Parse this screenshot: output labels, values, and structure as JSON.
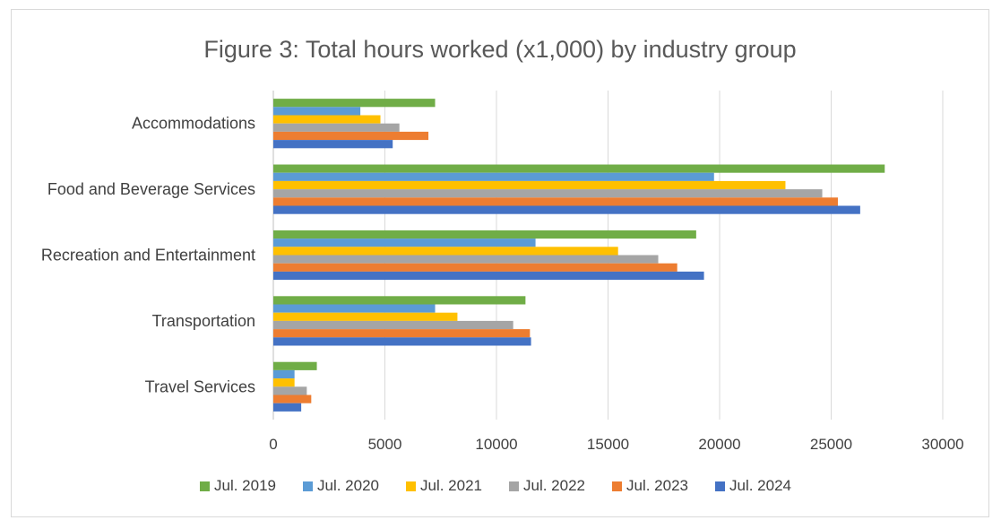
{
  "chart_data": {
    "type": "bar",
    "orientation": "horizontal",
    "title": "Figure 3: Total hours worked (x1,000) by industry group",
    "xlabel": "",
    "ylabel": "",
    "categories": [
      "Accommodations",
      "Food and Beverage Services",
      "Recreation and Entertainment",
      "Transportation",
      "Travel Services"
    ],
    "xlim": [
      0,
      30000
    ],
    "xticks": [
      "0",
      "5000",
      "10000",
      "15000",
      "20000",
      "25000",
      "30000"
    ],
    "grid": true,
    "legend_position": "bottom",
    "series": [
      {
        "name": "Jul. 2019",
        "color": "#70ad47",
        "values": [
          7250,
          27400,
          18950,
          11300,
          1950
        ]
      },
      {
        "name": "Jul. 2020",
        "color": "#5b9bd5",
        "values": [
          3900,
          19750,
          11750,
          7250,
          950
        ]
      },
      {
        "name": "Jul. 2021",
        "color": "#ffc000",
        "values": [
          4800,
          22950,
          15450,
          8250,
          950
        ]
      },
      {
        "name": "Jul. 2022",
        "color": "#a5a5a5",
        "values": [
          5650,
          24600,
          17250,
          10750,
          1500
        ]
      },
      {
        "name": "Jul. 2023",
        "color": "#ed7d31",
        "values": [
          6950,
          25300,
          18100,
          11500,
          1700
        ]
      },
      {
        "name": "Jul. 2024",
        "color": "#4472c4",
        "values": [
          5350,
          26300,
          19300,
          11550,
          1250
        ]
      }
    ]
  }
}
